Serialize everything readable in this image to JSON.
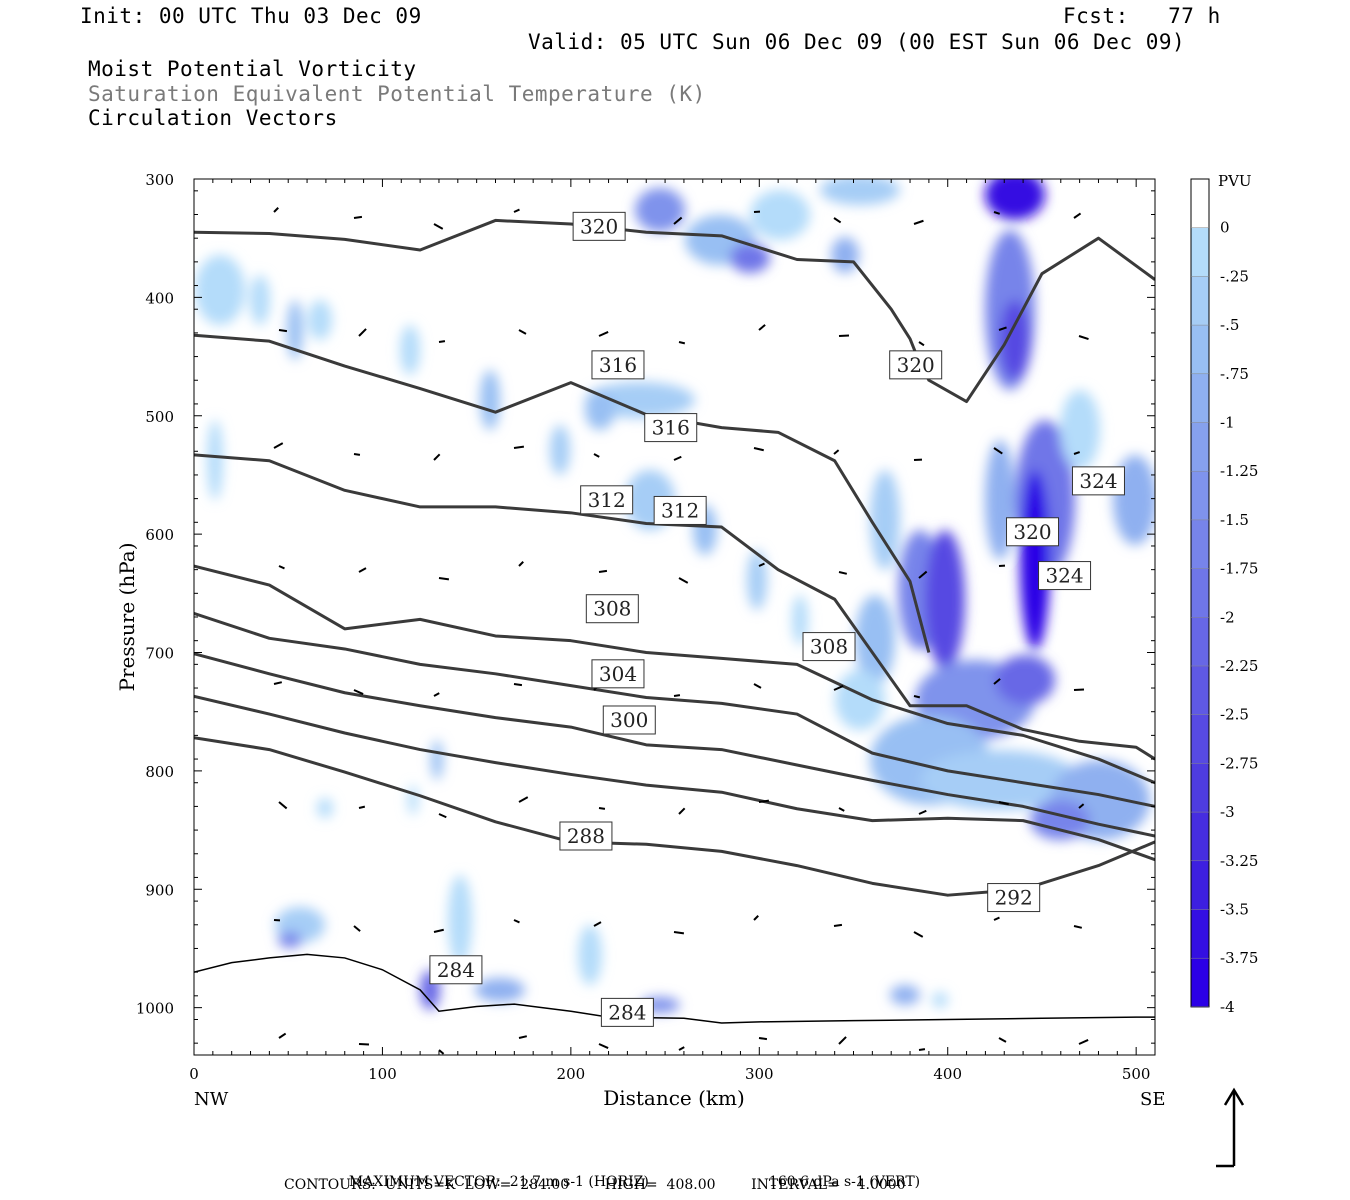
{
  "header": {
    "init": "Init: 00 UTC Thu 03 Dec 09",
    "fcst": "Fcst:   77 h",
    "valid": "Valid: 05 UTC Sun 06 Dec 09 (00 EST Sun 06 Dec 09)"
  },
  "legend_lines": {
    "line1": "Moist Potential Vorticity",
    "line2": "Saturation Equivalent Potential Temperature (K)",
    "line3": "Circulation Vectors"
  },
  "chart_data": {
    "type": "heatmap",
    "xlabel": "Distance (km)",
    "ylabel": "Pressure (hPa)",
    "x_ticks": [
      0,
      100,
      200,
      300,
      400,
      500
    ],
    "y_ticks": [
      300,
      400,
      500,
      600,
      700,
      800,
      900,
      1000
    ],
    "xlim": [
      0,
      510
    ],
    "ylim": [
      1040,
      300
    ],
    "x_end_labels": {
      "left": "NW",
      "right": "SE"
    },
    "colorbar": {
      "unit": "PVU",
      "levels": [
        0,
        -0.25,
        -0.5,
        -0.75,
        -1,
        -1.25,
        -1.5,
        -1.75,
        -2,
        -2.25,
        -2.5,
        -2.75,
        -3,
        -3.25,
        -3.5,
        -3.75,
        -4
      ],
      "labels": [
        "0",
        "-.25",
        "-.5",
        "-.75",
        "-1",
        "-1.25",
        "-1.5",
        "-1.75",
        "-2",
        "-2.25",
        "-2.5",
        "-2.75",
        "-3",
        "-3.25",
        "-3.5",
        "-3.75",
        "-4"
      ],
      "colors": [
        "#ffffff",
        "#b4dcfa",
        "#a6cdf6",
        "#98bff3",
        "#8fb0f0",
        "#86a1ee",
        "#7f93ec",
        "#7784ea",
        "#6f76e8",
        "#6767e6",
        "#5f59e4",
        "#574ae2",
        "#4e3ce0",
        "#462de0",
        "#3d1fe0",
        "#3410e2",
        "#2b00e6"
      ]
    },
    "contour_labels": [
      {
        "value": "320",
        "x": 215,
        "p": 340
      },
      {
        "value": "320",
        "x": 383,
        "p": 457
      },
      {
        "value": "316",
        "x": 225,
        "p": 457
      },
      {
        "value": "316",
        "x": 253,
        "p": 510
      },
      {
        "value": "312",
        "x": 219,
        "p": 571
      },
      {
        "value": "312",
        "x": 258,
        "p": 580
      },
      {
        "value": "320",
        "x": 445,
        "p": 598
      },
      {
        "value": "324",
        "x": 480,
        "p": 555
      },
      {
        "value": "324",
        "x": 462,
        "p": 635
      },
      {
        "value": "308",
        "x": 222,
        "p": 663
      },
      {
        "value": "308",
        "x": 337,
        "p": 695
      },
      {
        "value": "304",
        "x": 225,
        "p": 718
      },
      {
        "value": "300",
        "x": 231,
        "p": 757
      },
      {
        "value": "288",
        "x": 208,
        "p": 855
      },
      {
        "value": "292",
        "x": 435,
        "p": 907
      },
      {
        "value": "284",
        "x": 139,
        "p": 968
      },
      {
        "value": "284",
        "x": 230,
        "p": 1004
      }
    ],
    "isentropes": [
      {
        "value": 320,
        "x": [
          0,
          40,
          80,
          120,
          160,
          200,
          240,
          280,
          320,
          350,
          370,
          380,
          385,
          390,
          410,
          430,
          450,
          480,
          510
        ],
        "p": [
          345,
          346,
          351,
          360,
          335,
          338,
          345,
          348,
          368,
          370,
          410,
          435,
          455,
          470,
          488,
          440,
          380,
          350,
          385
        ]
      },
      {
        "value": 316,
        "x": [
          0,
          40,
          80,
          120,
          160,
          200,
          240,
          280,
          310,
          340,
          360,
          380,
          390
        ],
        "p": [
          432,
          437,
          458,
          477,
          497,
          472,
          499,
          510,
          514,
          538,
          590,
          640,
          700
        ]
      },
      {
        "value": 312,
        "x": [
          0,
          40,
          80,
          120,
          160,
          200,
          240,
          280,
          310,
          340,
          360,
          380,
          410,
          440,
          470,
          500,
          510
        ],
        "p": [
          533,
          538,
          563,
          577,
          577,
          582,
          591,
          594,
          630,
          655,
          700,
          745,
          745,
          765,
          775,
          780,
          790
        ]
      },
      {
        "value": 308,
        "x": [
          0,
          40,
          80,
          120,
          160,
          200,
          240,
          280,
          320,
          360,
          400,
          440,
          480,
          510
        ],
        "p": [
          627,
          643,
          680,
          672,
          686,
          690,
          700,
          705,
          710,
          740,
          760,
          770,
          790,
          810
        ]
      },
      {
        "value": 304,
        "x": [
          0,
          40,
          80,
          120,
          160,
          200,
          240,
          280,
          320,
          360,
          400,
          440,
          480,
          510
        ],
        "p": [
          667,
          688,
          697,
          710,
          718,
          728,
          738,
          743,
          752,
          785,
          800,
          810,
          820,
          830
        ]
      },
      {
        "value": 300,
        "x": [
          0,
          40,
          80,
          120,
          160,
          200,
          240,
          280,
          320,
          360,
          400,
          440,
          480,
          510
        ],
        "p": [
          701,
          718,
          734,
          745,
          755,
          763,
          778,
          782,
          795,
          808,
          820,
          830,
          845,
          855
        ]
      },
      {
        "value": 296,
        "x": [
          0,
          40,
          80,
          120,
          160,
          200,
          240,
          280,
          320,
          360,
          400,
          440,
          480,
          510
        ],
        "p": [
          737,
          752,
          768,
          782,
          793,
          803,
          812,
          818,
          832,
          842,
          840,
          842,
          858,
          875
        ]
      },
      {
        "value": 288,
        "x": [
          0,
          40,
          80,
          120,
          160,
          200,
          240,
          280,
          320,
          360,
          400,
          440,
          480,
          510
        ],
        "p": [
          772,
          782,
          801,
          821,
          843,
          860,
          862,
          868,
          880,
          895,
          905,
          900,
          880,
          860
        ]
      }
    ],
    "ground_surface": {
      "x": [
        0,
        20,
        40,
        60,
        80,
        100,
        120,
        130,
        150,
        170,
        200,
        220,
        260,
        280,
        300,
        350,
        400,
        450,
        500,
        510
      ],
      "p": [
        970,
        962,
        958,
        955,
        958,
        968,
        985,
        1003,
        999,
        997,
        1003,
        1008,
        1009,
        1013,
        1012,
        1011,
        1010,
        1009,
        1008,
        1008
      ]
    }
  },
  "footer": {
    "max_vector_label": "MAXIMUM VECTOR:  21.7 m s",
    "max_vector_horiz": "-1 (HORIZ)",
    "vert_value": "160.6 dPa s",
    "vert_units": "-1 (VERT)",
    "contours": "CONTOURS:  UNITS=K  LOW=  284.00        HIGH=  408.00        INTERVAL=    4.0000"
  }
}
